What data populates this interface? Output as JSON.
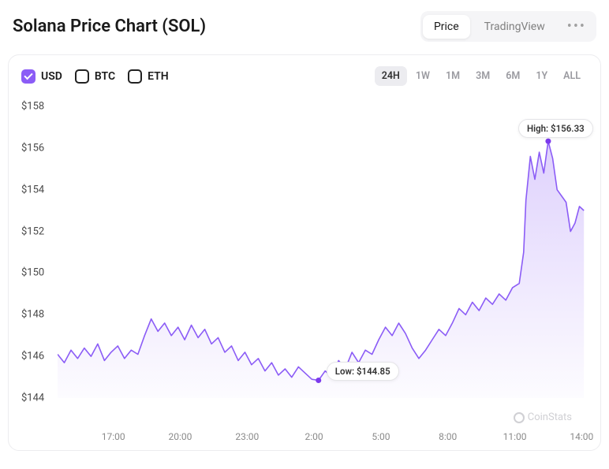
{
  "title": "Solana Price Chart (SOL)",
  "viewTabs": {
    "price": "Price",
    "tradingview": "TradingView"
  },
  "currencies": [
    {
      "label": "USD",
      "checked": true
    },
    {
      "label": "BTC",
      "checked": false
    },
    {
      "label": "ETH",
      "checked": false
    }
  ],
  "ranges": [
    "24H",
    "1W",
    "1M",
    "3M",
    "6M",
    "1Y",
    "ALL"
  ],
  "activeRange": "24H",
  "watermark": "CoinStats",
  "chart": {
    "type": "line",
    "colors": {
      "line": "#8b5cf6",
      "fillTop": "rgba(139,92,246,0.28)",
      "fillBottom": "rgba(139,92,246,0.02)",
      "marker": "#7c3aed",
      "background": "#ffffff",
      "axisText": "#4a4a4a",
      "xAxisText": "#8a8a8a"
    },
    "lineWidth": 1.6,
    "ylim": [
      144,
      158
    ],
    "ytick_step": 2,
    "yticks": [
      {
        "v": 158,
        "label": "$158"
      },
      {
        "v": 156,
        "label": "$156"
      },
      {
        "v": 154,
        "label": "$154"
      },
      {
        "v": 152,
        "label": "$152"
      },
      {
        "v": 150,
        "label": "$150"
      },
      {
        "v": 148,
        "label": "$148"
      },
      {
        "v": 146,
        "label": "$146"
      },
      {
        "v": 144,
        "label": "$144"
      }
    ],
    "xticks": [
      {
        "t": 17,
        "label": "17:00"
      },
      {
        "t": 20,
        "label": "20:00"
      },
      {
        "t": 23,
        "label": "23:00"
      },
      {
        "t": 26,
        "label": "2:00"
      },
      {
        "t": 29,
        "label": "5:00"
      },
      {
        "t": 32,
        "label": "8:00"
      },
      {
        "t": 35,
        "label": "11:00"
      },
      {
        "t": 38,
        "label": "14:00"
      }
    ],
    "xlim": [
      14.5,
      38.2
    ],
    "high": {
      "label": "High: $156.33",
      "t": 36.5,
      "v": 156.33
    },
    "low": {
      "label": "Low: $144.85",
      "t": 26.2,
      "v": 144.85
    },
    "series": [
      [
        14.5,
        146.1
      ],
      [
        14.8,
        145.7
      ],
      [
        15.1,
        146.3
      ],
      [
        15.4,
        145.9
      ],
      [
        15.7,
        146.4
      ],
      [
        16.0,
        146.0
      ],
      [
        16.3,
        146.6
      ],
      [
        16.6,
        145.8
      ],
      [
        16.9,
        146.2
      ],
      [
        17.2,
        146.5
      ],
      [
        17.5,
        145.9
      ],
      [
        17.8,
        146.3
      ],
      [
        18.1,
        146.1
      ],
      [
        18.4,
        147.0
      ],
      [
        18.7,
        147.8
      ],
      [
        19.0,
        147.2
      ],
      [
        19.3,
        147.6
      ],
      [
        19.6,
        147.0
      ],
      [
        19.9,
        147.4
      ],
      [
        20.2,
        146.8
      ],
      [
        20.5,
        147.5
      ],
      [
        20.8,
        146.9
      ],
      [
        21.1,
        147.3
      ],
      [
        21.4,
        146.6
      ],
      [
        21.7,
        146.9
      ],
      [
        22.0,
        146.2
      ],
      [
        22.3,
        146.5
      ],
      [
        22.6,
        145.8
      ],
      [
        22.9,
        146.2
      ],
      [
        23.2,
        145.6
      ],
      [
        23.5,
        145.9
      ],
      [
        23.8,
        145.3
      ],
      [
        24.1,
        145.7
      ],
      [
        24.4,
        145.1
      ],
      [
        24.7,
        145.4
      ],
      [
        25.0,
        145.0
      ],
      [
        25.3,
        145.5
      ],
      [
        25.6,
        145.2
      ],
      [
        25.9,
        144.9
      ],
      [
        26.2,
        144.85
      ],
      [
        26.5,
        145.3
      ],
      [
        26.8,
        145.0
      ],
      [
        27.1,
        145.8
      ],
      [
        27.4,
        145.4
      ],
      [
        27.7,
        146.2
      ],
      [
        28.0,
        145.7
      ],
      [
        28.3,
        146.3
      ],
      [
        28.6,
        146.1
      ],
      [
        28.9,
        146.8
      ],
      [
        29.2,
        147.4
      ],
      [
        29.5,
        147.0
      ],
      [
        29.8,
        147.6
      ],
      [
        30.1,
        147.1
      ],
      [
        30.4,
        146.4
      ],
      [
        30.7,
        145.9
      ],
      [
        31.0,
        146.3
      ],
      [
        31.3,
        146.8
      ],
      [
        31.6,
        147.3
      ],
      [
        31.9,
        147.0
      ],
      [
        32.2,
        147.6
      ],
      [
        32.5,
        148.3
      ],
      [
        32.8,
        148.0
      ],
      [
        33.1,
        148.6
      ],
      [
        33.4,
        148.2
      ],
      [
        33.7,
        148.8
      ],
      [
        34.0,
        148.5
      ],
      [
        34.3,
        149.0
      ],
      [
        34.6,
        148.7
      ],
      [
        34.9,
        149.3
      ],
      [
        35.2,
        149.5
      ],
      [
        35.4,
        151.0
      ],
      [
        35.5,
        153.5
      ],
      [
        35.7,
        155.6
      ],
      [
        35.9,
        154.5
      ],
      [
        36.1,
        155.8
      ],
      [
        36.3,
        154.8
      ],
      [
        36.5,
        156.33
      ],
      [
        36.7,
        155.5
      ],
      [
        36.9,
        154.0
      ],
      [
        37.1,
        153.7
      ],
      [
        37.3,
        153.4
      ],
      [
        37.5,
        152.0
      ],
      [
        37.7,
        152.4
      ],
      [
        37.9,
        153.2
      ],
      [
        38.1,
        153.0
      ]
    ]
  }
}
